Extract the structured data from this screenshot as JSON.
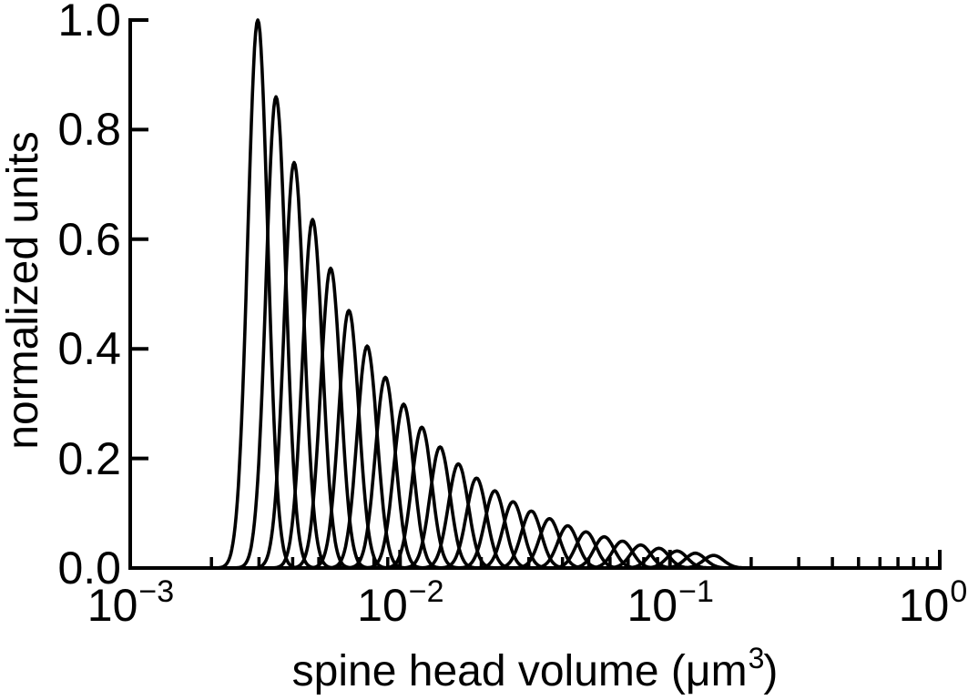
{
  "chart_data": {
    "type": "line",
    "title": "",
    "xlabel": "spine head volume (μm³)",
    "xlabel_parts": {
      "pre": "spine head volume (μm",
      "sup": "3",
      "post": ")"
    },
    "ylabel": "normalized units",
    "x_scale": "log",
    "y_scale": "linear",
    "xlim": [
      0.001,
      1
    ],
    "ylim": [
      0.0,
      1.0
    ],
    "grid": false,
    "legend": null,
    "background": "#ffffff",
    "axis_color": "#000000",
    "line_color": "#000000",
    "x_ticks": [
      {
        "base": "10",
        "exp": "−3",
        "value": 0.001
      },
      {
        "base": "10",
        "exp": "−2",
        "value": 0.01
      },
      {
        "base": "10",
        "exp": "−1",
        "value": 0.1
      },
      {
        "base": "10",
        "exp": "0",
        "value": 1
      }
    ],
    "x_minor_tick_multiples": [
      2,
      3,
      4,
      5,
      6,
      7,
      8,
      9
    ],
    "y_ticks": [
      {
        "label": "1.0",
        "value": 1.0
      },
      {
        "label": "0.8",
        "value": 0.8
      },
      {
        "label": "0.6",
        "value": 0.6
      },
      {
        "label": "0.4",
        "value": 0.4
      },
      {
        "label": "0.2",
        "value": 0.2
      },
      {
        "label": "0.0",
        "value": 0.0
      }
    ],
    "n_curves": 26,
    "curve_shape": "gaussian_in_log10x",
    "sigma_log10": 0.037,
    "peak_height_ratio": 0.86,
    "peak_position_ratio": 1.168,
    "series": [
      {
        "peak_x": 0.00297,
        "peak_y": 1.0
      },
      {
        "peak_x": 0.00347,
        "peak_y": 0.86
      },
      {
        "peak_x": 0.00405,
        "peak_y": 0.74
      },
      {
        "peak_x": 0.00474,
        "peak_y": 0.636
      },
      {
        "peak_x": 0.00553,
        "peak_y": 0.547
      },
      {
        "peak_x": 0.00646,
        "peak_y": 0.47
      },
      {
        "peak_x": 0.00755,
        "peak_y": 0.405
      },
      {
        "peak_x": 0.00882,
        "peak_y": 0.348
      },
      {
        "peak_x": 0.01031,
        "peak_y": 0.299
      },
      {
        "peak_x": 0.01204,
        "peak_y": 0.257
      },
      {
        "peak_x": 0.01407,
        "peak_y": 0.221
      },
      {
        "peak_x": 0.01644,
        "peak_y": 0.19
      },
      {
        "peak_x": 0.0192,
        "peak_y": 0.164
      },
      {
        "peak_x": 0.02244,
        "peak_y": 0.141
      },
      {
        "peak_x": 0.02621,
        "peak_y": 0.121
      },
      {
        "peak_x": 0.03063,
        "peak_y": 0.104
      },
      {
        "peak_x": 0.03578,
        "peak_y": 0.09
      },
      {
        "peak_x": 0.0418,
        "peak_y": 0.077
      },
      {
        "peak_x": 0.04884,
        "peak_y": 0.066
      },
      {
        "peak_x": 0.05706,
        "peak_y": 0.057
      },
      {
        "peak_x": 0.06667,
        "peak_y": 0.049
      },
      {
        "peak_x": 0.07789,
        "peak_y": 0.042
      },
      {
        "peak_x": 0.091,
        "peak_y": 0.036
      },
      {
        "peak_x": 0.10632,
        "peak_y": 0.031
      },
      {
        "peak_x": 0.12422,
        "peak_y": 0.027
      },
      {
        "peak_x": 0.14513,
        "peak_y": 0.023
      }
    ]
  }
}
